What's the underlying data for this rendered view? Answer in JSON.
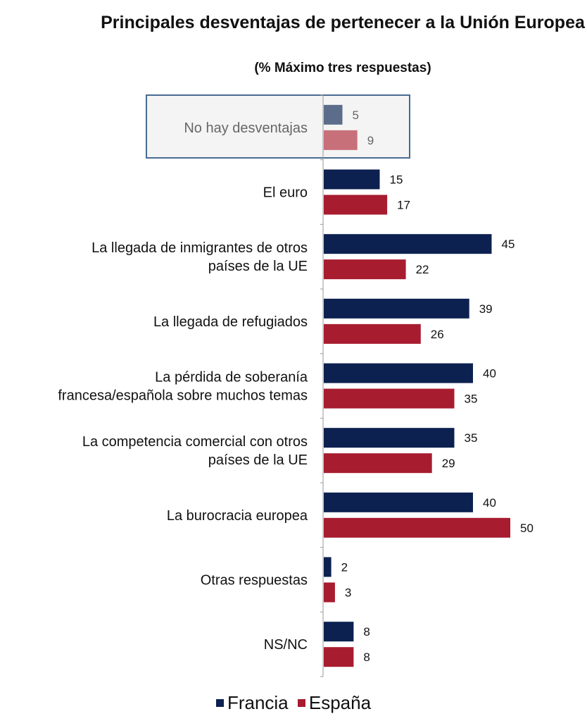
{
  "chart_data": {
    "type": "bar",
    "orientation": "horizontal",
    "title": "Principales desventajas de pertenecer a la Unión Europea",
    "subtitle": "(% Máximo tres respuestas)",
    "categories": [
      "No hay desventajas",
      "El euro",
      "La llegada de inmigrantes de otros países de la UE",
      "La llegada de refugiados",
      "La pérdida de soberanía francesa/española sobre muchos temas",
      "La competencia comercial con otros países de la UE",
      "La burocracia europea",
      "Otras respuestas",
      "NS/NC"
    ],
    "category_lines": [
      [
        "No hay desventajas"
      ],
      [
        "El euro"
      ],
      [
        "La llegada de inmigrantes de otros",
        "países de la UE"
      ],
      [
        "La llegada de refugiados"
      ],
      [
        "La pérdida de soberanía",
        "francesa/española sobre muchos temas"
      ],
      [
        "La competencia comercial con otros",
        "países de la UE"
      ],
      [
        "La burocracia europea"
      ],
      [
        "Otras respuestas"
      ],
      [
        "NS/NC"
      ]
    ],
    "series": [
      {
        "name": "Francia",
        "color": "#0c2150",
        "values": [
          5,
          15,
          45,
          39,
          40,
          35,
          40,
          2,
          8
        ]
      },
      {
        "name": "España",
        "color": "#a81c30",
        "values": [
          9,
          17,
          22,
          26,
          35,
          29,
          50,
          3,
          8
        ]
      }
    ],
    "highlight": {
      "category_index": 0,
      "faded_colors": [
        "#5b6d8b",
        "#c8707a"
      ],
      "label_color": "#666666"
    },
    "xlim": [
      0,
      50
    ],
    "legend_position": "bottom",
    "grid": false
  }
}
